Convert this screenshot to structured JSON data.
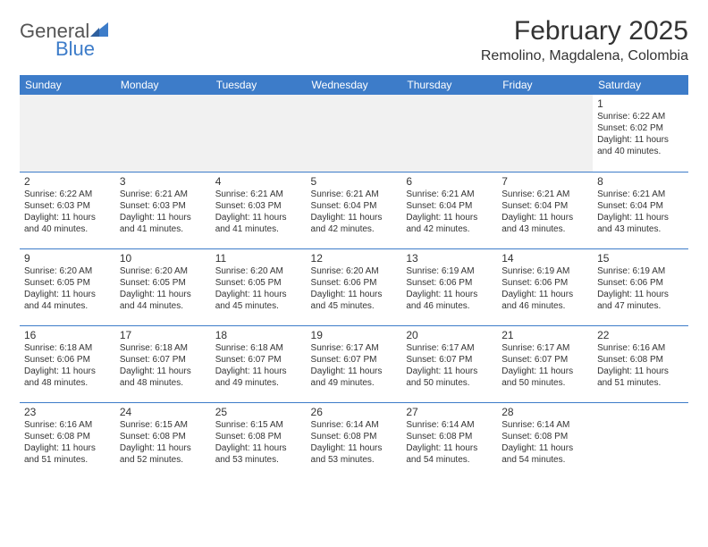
{
  "logo": {
    "general": "General",
    "blue": "Blue"
  },
  "title": "February 2025",
  "location": "Remolino, Magdalena, Colombia",
  "colors": {
    "brand_blue": "#3d7cc9",
    "text": "#333333",
    "bg": "#ffffff",
    "shade": "#f1f1f1"
  },
  "day_headers": [
    "Sunday",
    "Monday",
    "Tuesday",
    "Wednesday",
    "Thursday",
    "Friday",
    "Saturday"
  ],
  "weeks": [
    [
      null,
      null,
      null,
      null,
      null,
      null,
      {
        "n": "1",
        "sr": "Sunrise: 6:22 AM",
        "ss": "Sunset: 6:02 PM",
        "d1": "Daylight: 11 hours",
        "d2": "and 40 minutes."
      }
    ],
    [
      {
        "n": "2",
        "sr": "Sunrise: 6:22 AM",
        "ss": "Sunset: 6:03 PM",
        "d1": "Daylight: 11 hours",
        "d2": "and 40 minutes."
      },
      {
        "n": "3",
        "sr": "Sunrise: 6:21 AM",
        "ss": "Sunset: 6:03 PM",
        "d1": "Daylight: 11 hours",
        "d2": "and 41 minutes."
      },
      {
        "n": "4",
        "sr": "Sunrise: 6:21 AM",
        "ss": "Sunset: 6:03 PM",
        "d1": "Daylight: 11 hours",
        "d2": "and 41 minutes."
      },
      {
        "n": "5",
        "sr": "Sunrise: 6:21 AM",
        "ss": "Sunset: 6:04 PM",
        "d1": "Daylight: 11 hours",
        "d2": "and 42 minutes."
      },
      {
        "n": "6",
        "sr": "Sunrise: 6:21 AM",
        "ss": "Sunset: 6:04 PM",
        "d1": "Daylight: 11 hours",
        "d2": "and 42 minutes."
      },
      {
        "n": "7",
        "sr": "Sunrise: 6:21 AM",
        "ss": "Sunset: 6:04 PM",
        "d1": "Daylight: 11 hours",
        "d2": "and 43 minutes."
      },
      {
        "n": "8",
        "sr": "Sunrise: 6:21 AM",
        "ss": "Sunset: 6:04 PM",
        "d1": "Daylight: 11 hours",
        "d2": "and 43 minutes."
      }
    ],
    [
      {
        "n": "9",
        "sr": "Sunrise: 6:20 AM",
        "ss": "Sunset: 6:05 PM",
        "d1": "Daylight: 11 hours",
        "d2": "and 44 minutes."
      },
      {
        "n": "10",
        "sr": "Sunrise: 6:20 AM",
        "ss": "Sunset: 6:05 PM",
        "d1": "Daylight: 11 hours",
        "d2": "and 44 minutes."
      },
      {
        "n": "11",
        "sr": "Sunrise: 6:20 AM",
        "ss": "Sunset: 6:05 PM",
        "d1": "Daylight: 11 hours",
        "d2": "and 45 minutes."
      },
      {
        "n": "12",
        "sr": "Sunrise: 6:20 AM",
        "ss": "Sunset: 6:06 PM",
        "d1": "Daylight: 11 hours",
        "d2": "and 45 minutes."
      },
      {
        "n": "13",
        "sr": "Sunrise: 6:19 AM",
        "ss": "Sunset: 6:06 PM",
        "d1": "Daylight: 11 hours",
        "d2": "and 46 minutes."
      },
      {
        "n": "14",
        "sr": "Sunrise: 6:19 AM",
        "ss": "Sunset: 6:06 PM",
        "d1": "Daylight: 11 hours",
        "d2": "and 46 minutes."
      },
      {
        "n": "15",
        "sr": "Sunrise: 6:19 AM",
        "ss": "Sunset: 6:06 PM",
        "d1": "Daylight: 11 hours",
        "d2": "and 47 minutes."
      }
    ],
    [
      {
        "n": "16",
        "sr": "Sunrise: 6:18 AM",
        "ss": "Sunset: 6:06 PM",
        "d1": "Daylight: 11 hours",
        "d2": "and 48 minutes."
      },
      {
        "n": "17",
        "sr": "Sunrise: 6:18 AM",
        "ss": "Sunset: 6:07 PM",
        "d1": "Daylight: 11 hours",
        "d2": "and 48 minutes."
      },
      {
        "n": "18",
        "sr": "Sunrise: 6:18 AM",
        "ss": "Sunset: 6:07 PM",
        "d1": "Daylight: 11 hours",
        "d2": "and 49 minutes."
      },
      {
        "n": "19",
        "sr": "Sunrise: 6:17 AM",
        "ss": "Sunset: 6:07 PM",
        "d1": "Daylight: 11 hours",
        "d2": "and 49 minutes."
      },
      {
        "n": "20",
        "sr": "Sunrise: 6:17 AM",
        "ss": "Sunset: 6:07 PM",
        "d1": "Daylight: 11 hours",
        "d2": "and 50 minutes."
      },
      {
        "n": "21",
        "sr": "Sunrise: 6:17 AM",
        "ss": "Sunset: 6:07 PM",
        "d1": "Daylight: 11 hours",
        "d2": "and 50 minutes."
      },
      {
        "n": "22",
        "sr": "Sunrise: 6:16 AM",
        "ss": "Sunset: 6:08 PM",
        "d1": "Daylight: 11 hours",
        "d2": "and 51 minutes."
      }
    ],
    [
      {
        "n": "23",
        "sr": "Sunrise: 6:16 AM",
        "ss": "Sunset: 6:08 PM",
        "d1": "Daylight: 11 hours",
        "d2": "and 51 minutes."
      },
      {
        "n": "24",
        "sr": "Sunrise: 6:15 AM",
        "ss": "Sunset: 6:08 PM",
        "d1": "Daylight: 11 hours",
        "d2": "and 52 minutes."
      },
      {
        "n": "25",
        "sr": "Sunrise: 6:15 AM",
        "ss": "Sunset: 6:08 PM",
        "d1": "Daylight: 11 hours",
        "d2": "and 53 minutes."
      },
      {
        "n": "26",
        "sr": "Sunrise: 6:14 AM",
        "ss": "Sunset: 6:08 PM",
        "d1": "Daylight: 11 hours",
        "d2": "and 53 minutes."
      },
      {
        "n": "27",
        "sr": "Sunrise: 6:14 AM",
        "ss": "Sunset: 6:08 PM",
        "d1": "Daylight: 11 hours",
        "d2": "and 54 minutes."
      },
      {
        "n": "28",
        "sr": "Sunrise: 6:14 AM",
        "ss": "Sunset: 6:08 PM",
        "d1": "Daylight: 11 hours",
        "d2": "and 54 minutes."
      },
      null
    ]
  ]
}
